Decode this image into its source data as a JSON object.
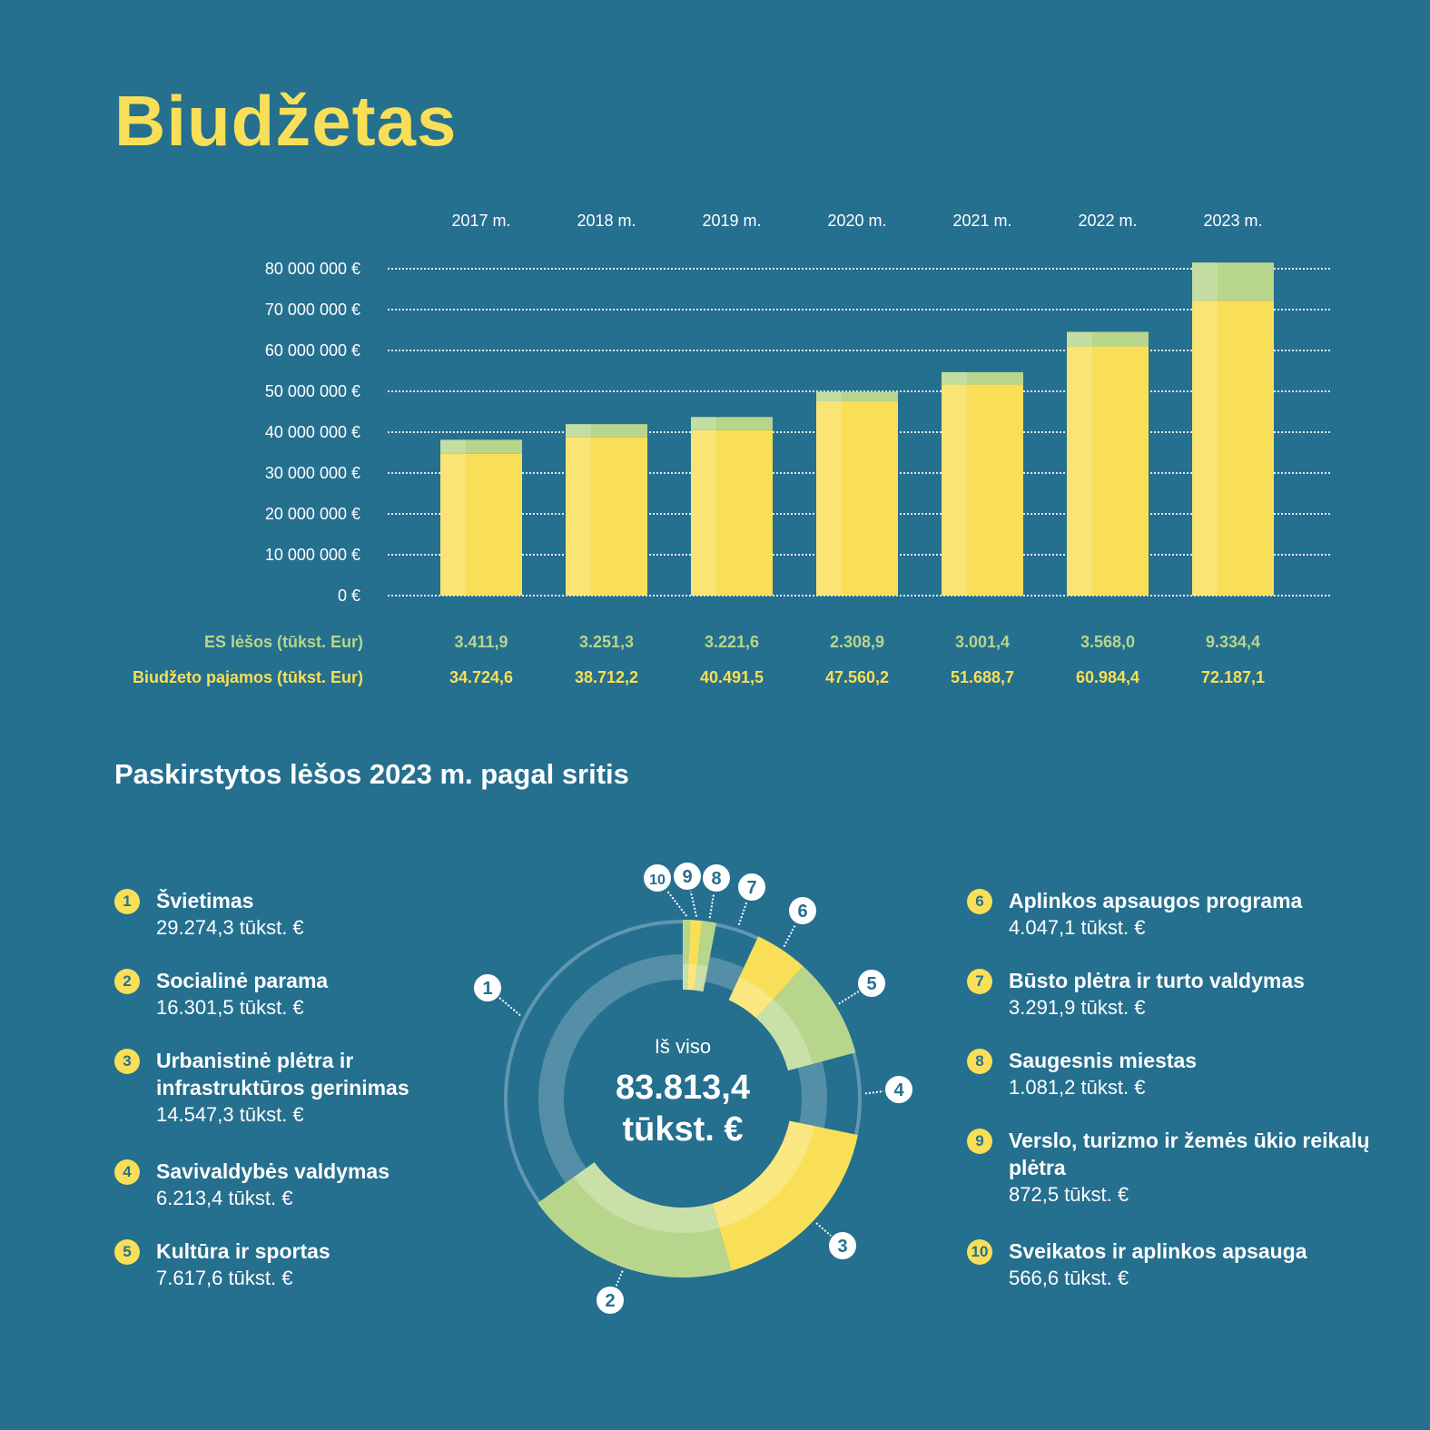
{
  "title": "Biudžetas",
  "chart_data": [
    {
      "type": "bar",
      "stacked": true,
      "categories": [
        "2017 m.",
        "2018 m.",
        "2019 m.",
        "2020 m.",
        "2021 m.",
        "2022 m.",
        "2023 m."
      ],
      "y_ticks": [
        "0 €",
        "10 000 000 €",
        "20 000 000 €",
        "30 000 000 €",
        "40 000 000 €",
        "50 000 000 €",
        "60 000 000 €",
        "70 000 000 €",
        "80 000 000 €"
      ],
      "ylim": [
        0,
        80000000
      ],
      "grid": true,
      "series": [
        {
          "name": "Biudžeto pajamos (tūkst. Eur)",
          "color": "#f9df57",
          "values": [
            34724.6,
            38712.2,
            40491.5,
            47560.2,
            51688.7,
            60984.4,
            72187.1
          ],
          "labels": [
            "34.724,6",
            "38.712,2",
            "40.491,5",
            "47.560,2",
            "51.688,7",
            "60.984,4",
            "72.187,1"
          ]
        },
        {
          "name": "ES lėšos (tūkst. Eur)",
          "color": "#b7d68c",
          "values": [
            3411.9,
            3251.3,
            3221.6,
            2308.9,
            3001.4,
            3568.0,
            9334.4
          ],
          "labels": [
            "3.411,9",
            "3.251,3",
            "3.221,6",
            "2.308,9",
            "3.001,4",
            "3.568,0",
            "9.334,4"
          ]
        }
      ]
    },
    {
      "type": "pie",
      "donut": true,
      "title": "Paskirstytos lėšos 2023 m. pagal sritis",
      "center_label": "Iš viso",
      "center_total": "83.813,4 tūkst. €",
      "slices": [
        {
          "num": "1",
          "name": "Švietimas",
          "value": 29274.3,
          "label": "29.274,3 tūkst. €",
          "color": "#256f8f"
        },
        {
          "num": "2",
          "name": "Socialinė parama",
          "value": 16301.5,
          "label": "16.301,5 tūkst. €",
          "color": "#b7d68c"
        },
        {
          "num": "3",
          "name": "Urbanistinė plėtra ir infrastruktūros gerinimas",
          "value": 14547.3,
          "label": "14.547,3 tūkst. €",
          "color": "#f9df57"
        },
        {
          "num": "4",
          "name": "Savivaldybės valdymas",
          "value": 6213.4,
          "label": "6.213,4 tūkst. €",
          "color": "#256f8f"
        },
        {
          "num": "5",
          "name": "Kultūra ir sportas",
          "value": 7617.6,
          "label": "7.617,6 tūkst. €",
          "color": "#b7d68c"
        },
        {
          "num": "6",
          "name": "Aplinkos apsaugos programa",
          "value": 4047.1,
          "label": "4.047,1 tūkst. €",
          "color": "#f9df57"
        },
        {
          "num": "7",
          "name": "Būsto plėtra ir turto valdymas",
          "value": 3291.9,
          "label": "3.291,9 tūkst. €",
          "color": "#256f8f"
        },
        {
          "num": "8",
          "name": "Saugesnis miestas",
          "value": 1081.2,
          "label": "1.081,2 tūkst. €",
          "color": "#b7d68c"
        },
        {
          "num": "9",
          "name": "Verslo, turizmo ir žemės ūkio reikalų plėtra",
          "value": 872.5,
          "label": "872,5 tūkst. €",
          "color": "#f9df57"
        },
        {
          "num": "10",
          "name": "Sveikatos ir aplinkos apsauga",
          "value": 566.6,
          "label": "566,6 tūkst. €",
          "color": "#b7d68c"
        }
      ]
    }
  ]
}
